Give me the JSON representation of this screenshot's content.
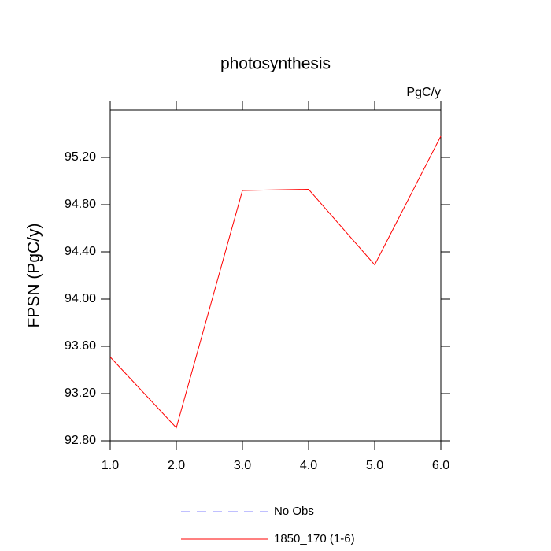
{
  "chart_data": {
    "type": "line",
    "title": "photosynthesis",
    "units": "PgC/y",
    "y_label": "FPSN  (PgC/y)",
    "x": [
      1,
      2,
      3,
      4,
      5,
      6
    ],
    "series": [
      {
        "name": "No Obs",
        "color": "#8080ff",
        "dashed": true,
        "values": [
          null,
          null,
          null,
          null,
          null,
          null
        ]
      },
      {
        "name": "1850_170 (1-6)",
        "color": "#ff0000",
        "dashed": false,
        "values": [
          93.51,
          92.91,
          94.92,
          94.93,
          94.29,
          95.38
        ]
      }
    ],
    "xlim": [
      1,
      6
    ],
    "xticks": [
      {
        "value": 1,
        "label": "1.0"
      },
      {
        "value": 2,
        "label": "2.0"
      },
      {
        "value": 3,
        "label": "3.0"
      },
      {
        "value": 4,
        "label": "4.0"
      },
      {
        "value": 5,
        "label": "5.0"
      },
      {
        "value": 6,
        "label": "6.0"
      }
    ],
    "ylim": [
      92.8,
      95.6
    ],
    "yticks": [
      {
        "value": 92.8,
        "label": "92.80"
      },
      {
        "value": 93.2,
        "label": "93.20"
      },
      {
        "value": 93.6,
        "label": "93.60"
      },
      {
        "value": 94.0,
        "label": "94.00"
      },
      {
        "value": 94.4,
        "label": "94.40"
      },
      {
        "value": 94.8,
        "label": "94.80"
      },
      {
        "value": 95.2,
        "label": "95.20"
      }
    ],
    "grid": false
  }
}
